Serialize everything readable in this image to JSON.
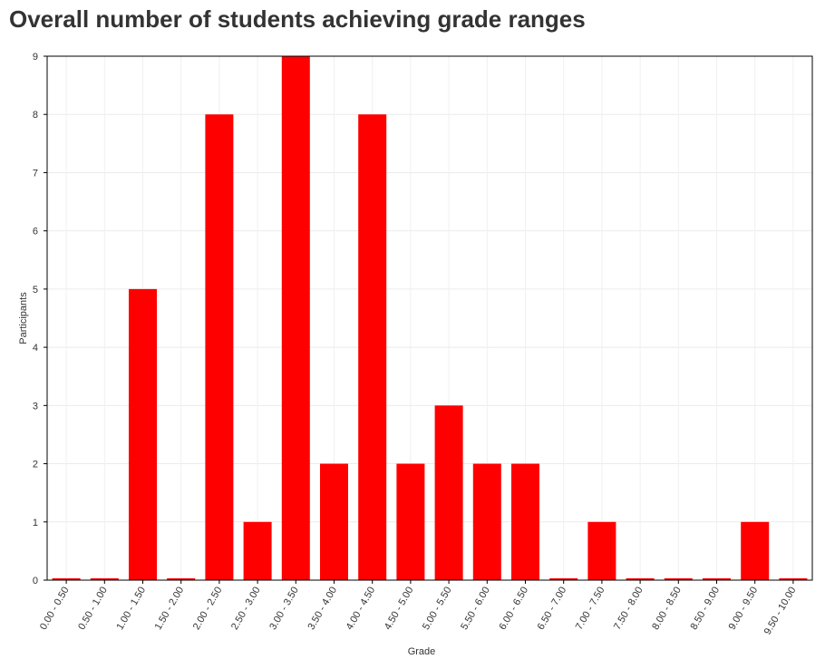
{
  "page": {
    "title": "Overall number of students achieving grade ranges"
  },
  "chart_data": {
    "type": "bar",
    "title": "Overall number of students achieving grade ranges",
    "xlabel": "Grade",
    "ylabel": "Participants",
    "categories": [
      "0.00 - 0.50",
      "0.50 - 1.00",
      "1.00 - 1.50",
      "1.50 - 2.00",
      "2.00 - 2.50",
      "2.50 - 3.00",
      "3.00 - 3.50",
      "3.50 - 4.00",
      "4.00 - 4.50",
      "4.50 - 5.00",
      "5.00 - 5.50",
      "5.50 - 6.00",
      "6.00 - 6.50",
      "6.50 - 7.00",
      "7.00 - 7.50",
      "7.50 - 8.00",
      "8.00 - 8.50",
      "8.50 - 9.00",
      "9.00 - 9.50",
      "9.50 - 10.00"
    ],
    "values": [
      0,
      0,
      5,
      0,
      8,
      1,
      9,
      2,
      8,
      2,
      3,
      2,
      2,
      0,
      1,
      0,
      0,
      0,
      1,
      0
    ],
    "ylim": [
      0,
      9
    ],
    "yticks": [
      "0",
      "1",
      "2",
      "3",
      "4",
      "5",
      "6",
      "7",
      "8",
      "9"
    ],
    "grid": true,
    "bar_color": "#ff0000"
  }
}
